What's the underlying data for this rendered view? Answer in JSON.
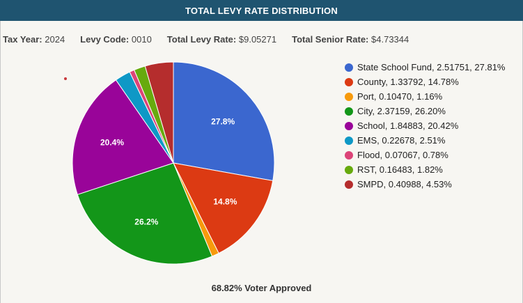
{
  "header": {
    "title": "TOTAL LEVY RATE DISTRIBUTION"
  },
  "info": {
    "tax_year_label": "Tax Year:",
    "tax_year_value": "2024",
    "levy_code_label": "Levy Code:",
    "levy_code_value": "0010",
    "total_levy_label": "Total Levy Rate:",
    "total_levy_value": "$9.05271",
    "total_senior_label": "Total Senior Rate:",
    "total_senior_value": "$4.73344"
  },
  "footer": {
    "text": "68.82% Voter Approved"
  },
  "chart_data": {
    "type": "pie",
    "legend_position": "right",
    "slices": [
      {
        "name": "State School Fund",
        "rate": "2.51751",
        "percent": 27.81,
        "legend": "State School Fund, 2.51751, 27.81%",
        "label": "27.8%",
        "color": "#3b67cf"
      },
      {
        "name": "County",
        "rate": "1.33792",
        "percent": 14.78,
        "legend": "County, 1.33792, 14.78%",
        "label": "14.8%",
        "color": "#dc3a13"
      },
      {
        "name": "Port",
        "rate": "0.10470",
        "percent": 1.16,
        "legend": "Port, 0.10470, 1.16%",
        "label": "",
        "color": "#f79a0c"
      },
      {
        "name": "City",
        "rate": "2.37159",
        "percent": 26.2,
        "legend": "City, 2.37159, 26.20%",
        "label": "26.2%",
        "color": "#139619"
      },
      {
        "name": "School",
        "rate": "1.84883",
        "percent": 20.42,
        "legend": "School, 1.84883, 20.42%",
        "label": "20.4%",
        "color": "#990499"
      },
      {
        "name": "EMS",
        "rate": "0.22678",
        "percent": 2.51,
        "legend": "EMS, 0.22678, 2.51%",
        "label": "",
        "color": "#0e98c6"
      },
      {
        "name": "Flood",
        "rate": "0.07067",
        "percent": 0.78,
        "legend": "Flood, 0.07067, 0.78%",
        "label": "",
        "color": "#dc4478"
      },
      {
        "name": "RST",
        "rate": "0.16483",
        "percent": 1.82,
        "legend": "RST, 0.16483, 1.82%",
        "label": "",
        "color": "#67aa0e"
      },
      {
        "name": "SMPD",
        "rate": "0.40988",
        "percent": 4.53,
        "legend": "SMPD, 0.40988, 4.53%",
        "label": "",
        "color": "#b52d2d"
      }
    ]
  }
}
